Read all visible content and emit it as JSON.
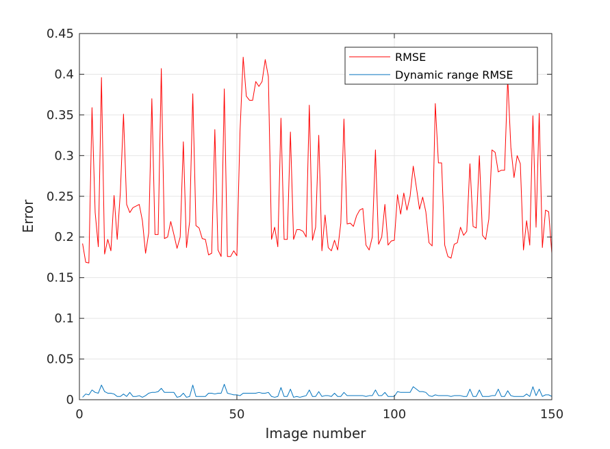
{
  "chart_data": {
    "type": "line",
    "title": "",
    "xlabel": "Image number",
    "ylabel": "Error",
    "xlim": [
      0,
      150
    ],
    "ylim": [
      0,
      0.45
    ],
    "xticks": [
      0,
      50,
      100,
      150
    ],
    "yticks": [
      0,
      0.05,
      0.1,
      0.15,
      0.2,
      0.25,
      0.3,
      0.35,
      0.4,
      0.45
    ],
    "xtick_labels": [
      "0",
      "50",
      "100",
      "150"
    ],
    "ytick_labels": [
      "0",
      "0.05",
      "0.1",
      "0.15",
      "0.2",
      "0.25",
      "0.3",
      "0.35",
      "0.4",
      "0.45"
    ],
    "grid": true,
    "legend_position": "top-right",
    "x": [
      1,
      2,
      3,
      4,
      5,
      6,
      7,
      8,
      9,
      10,
      11,
      12,
      13,
      14,
      15,
      16,
      17,
      18,
      19,
      20,
      21,
      22,
      23,
      24,
      25,
      26,
      27,
      28,
      29,
      30,
      31,
      32,
      33,
      34,
      35,
      36,
      37,
      38,
      39,
      40,
      41,
      42,
      43,
      44,
      45,
      46,
      47,
      48,
      49,
      50,
      51,
      52,
      53,
      54,
      55,
      56,
      57,
      58,
      59,
      60,
      61,
      62,
      63,
      64,
      65,
      66,
      67,
      68,
      69,
      70,
      71,
      72,
      73,
      74,
      75,
      76,
      77,
      78,
      79,
      80,
      81,
      82,
      83,
      84,
      85,
      86,
      87,
      88,
      89,
      90,
      91,
      92,
      93,
      94,
      95,
      96,
      97,
      98,
      99,
      100,
      101,
      102,
      103,
      104,
      105,
      106,
      107,
      108,
      109,
      110,
      111,
      112,
      113,
      114,
      115,
      116,
      117,
      118,
      119,
      120,
      121,
      122,
      123,
      124,
      125,
      126,
      127,
      128,
      129,
      130,
      131,
      132,
      133,
      134,
      135,
      136,
      137,
      138,
      139,
      140,
      141,
      142,
      143,
      144,
      145,
      146,
      147,
      148,
      149,
      150
    ],
    "series": [
      {
        "name": "RMSE",
        "color": "#ff0000",
        "values": [
          0.192,
          0.169,
          0.168,
          0.359,
          0.23,
          0.188,
          0.396,
          0.179,
          0.197,
          0.183,
          0.251,
          0.197,
          0.255,
          0.351,
          0.24,
          0.23,
          0.236,
          0.238,
          0.24,
          0.22,
          0.18,
          0.205,
          0.37,
          0.203,
          0.203,
          0.407,
          0.198,
          0.2,
          0.219,
          0.203,
          0.186,
          0.2,
          0.317,
          0.187,
          0.219,
          0.376,
          0.214,
          0.211,
          0.198,
          0.197,
          0.178,
          0.18,
          0.332,
          0.184,
          0.176,
          0.382,
          0.176,
          0.176,
          0.183,
          0.177,
          0.33,
          0.421,
          0.373,
          0.368,
          0.368,
          0.391,
          0.385,
          0.391,
          0.418,
          0.397,
          0.197,
          0.212,
          0.188,
          0.346,
          0.197,
          0.197,
          0.329,
          0.197,
          0.209,
          0.209,
          0.207,
          0.2,
          0.362,
          0.196,
          0.212,
          0.325,
          0.183,
          0.227,
          0.187,
          0.183,
          0.196,
          0.184,
          0.217,
          0.345,
          0.216,
          0.217,
          0.213,
          0.226,
          0.233,
          0.235,
          0.19,
          0.184,
          0.2,
          0.307,
          0.191,
          0.2,
          0.24,
          0.19,
          0.195,
          0.196,
          0.252,
          0.228,
          0.254,
          0.233,
          0.25,
          0.287,
          0.261,
          0.234,
          0.249,
          0.231,
          0.193,
          0.189,
          0.364,
          0.291,
          0.291,
          0.19,
          0.176,
          0.174,
          0.191,
          0.193,
          0.212,
          0.202,
          0.207,
          0.29,
          0.213,
          0.211,
          0.3,
          0.202,
          0.197,
          0.222,
          0.307,
          0.304,
          0.28,
          0.282,
          0.282,
          0.395,
          0.31,
          0.273,
          0.3,
          0.29,
          0.184,
          0.22,
          0.19,
          0.349,
          0.212,
          0.352,
          0.187,
          0.233,
          0.231,
          0.18
        ]
      },
      {
        "name": "Dynamic range RMSE",
        "color": "#0072bd",
        "values": [
          0.003,
          0.007,
          0.006,
          0.012,
          0.009,
          0.008,
          0.018,
          0.01,
          0.008,
          0.008,
          0.007,
          0.004,
          0.004,
          0.007,
          0.004,
          0.009,
          0.004,
          0.004,
          0.005,
          0.003,
          0.005,
          0.008,
          0.009,
          0.009,
          0.01,
          0.014,
          0.009,
          0.009,
          0.009,
          0.009,
          0.003,
          0.004,
          0.008,
          0.003,
          0.004,
          0.018,
          0.004,
          0.004,
          0.004,
          0.004,
          0.008,
          0.008,
          0.007,
          0.008,
          0.008,
          0.019,
          0.008,
          0.007,
          0.006,
          0.006,
          0.005,
          0.008,
          0.008,
          0.008,
          0.008,
          0.008,
          0.009,
          0.008,
          0.008,
          0.009,
          0.004,
          0.003,
          0.004,
          0.015,
          0.004,
          0.004,
          0.013,
          0.003,
          0.004,
          0.003,
          0.004,
          0.005,
          0.012,
          0.004,
          0.004,
          0.01,
          0.004,
          0.005,
          0.005,
          0.004,
          0.008,
          0.004,
          0.004,
          0.009,
          0.005,
          0.005,
          0.005,
          0.005,
          0.005,
          0.005,
          0.004,
          0.005,
          0.005,
          0.012,
          0.005,
          0.005,
          0.009,
          0.004,
          0.004,
          0.004,
          0.01,
          0.009,
          0.009,
          0.009,
          0.009,
          0.016,
          0.013,
          0.01,
          0.01,
          0.009,
          0.005,
          0.004,
          0.006,
          0.005,
          0.005,
          0.005,
          0.005,
          0.004,
          0.005,
          0.005,
          0.005,
          0.004,
          0.004,
          0.013,
          0.004,
          0.004,
          0.012,
          0.004,
          0.004,
          0.004,
          0.005,
          0.005,
          0.013,
          0.004,
          0.004,
          0.011,
          0.005,
          0.004,
          0.004,
          0.004,
          0.004,
          0.007,
          0.004,
          0.016,
          0.005,
          0.013,
          0.004,
          0.006,
          0.006,
          0.004
        ]
      }
    ]
  }
}
